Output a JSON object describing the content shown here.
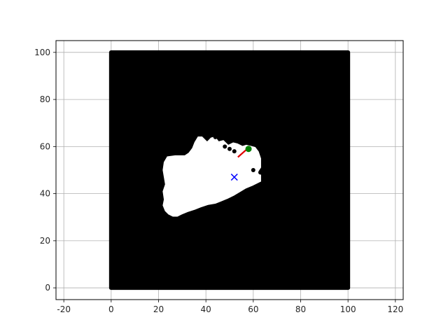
{
  "chart_data": {
    "type": "scatter",
    "title": "",
    "xlabel": "",
    "ylabel": "",
    "xlim": [
      -23.3,
      123.3
    ],
    "ylim": [
      -5,
      105
    ],
    "xticks": [
      -20,
      0,
      20,
      40,
      60,
      80,
      100,
      120
    ],
    "yticks": [
      0,
      20,
      40,
      60,
      80,
      100
    ],
    "grid": true,
    "legend": "none",
    "series": [
      {
        "marker": "dot",
        "color": "#000000",
        "description_region": "occupied grid cells, square 0..100 x 0..100",
        "grid_extent": {
          "x": [
            0,
            100
          ],
          "y": [
            0,
            100
          ]
        },
        "free_space_polygon": [
          [
            35,
            62
          ],
          [
            36.5,
            64.5
          ],
          [
            38.5,
            64.5
          ],
          [
            40.5,
            62.5
          ],
          [
            42,
            64
          ],
          [
            44,
            64.5
          ],
          [
            45.5,
            62.5
          ],
          [
            47.5,
            63
          ],
          [
            49.5,
            61
          ],
          [
            51.5,
            62
          ],
          [
            53.5,
            61.5
          ],
          [
            55.5,
            60.5
          ],
          [
            57,
            61
          ],
          [
            59,
            60.5
          ],
          [
            61,
            60
          ],
          [
            62.5,
            58
          ],
          [
            63.5,
            55
          ],
          [
            63.5,
            51
          ],
          [
            62.5,
            49.5
          ],
          [
            63.5,
            48
          ],
          [
            63.5,
            45
          ],
          [
            61.5,
            44
          ],
          [
            59.5,
            43
          ],
          [
            57,
            42
          ],
          [
            54.5,
            40.5
          ],
          [
            52,
            39
          ],
          [
            49,
            37.5
          ],
          [
            46.5,
            36.5
          ],
          [
            44,
            35.5
          ],
          [
            41,
            35
          ],
          [
            38,
            34
          ],
          [
            35.5,
            33
          ],
          [
            32.5,
            32
          ],
          [
            30,
            31
          ],
          [
            28,
            30
          ],
          [
            26,
            30
          ],
          [
            24,
            31
          ],
          [
            22.5,
            32.5
          ],
          [
            21.5,
            35
          ],
          [
            22,
            37.5
          ],
          [
            21.5,
            41
          ],
          [
            22.5,
            44
          ],
          [
            22,
            47
          ],
          [
            21.5,
            50
          ],
          [
            22,
            53.5
          ],
          [
            23.5,
            56
          ],
          [
            27,
            56.5
          ],
          [
            31,
            56.5
          ],
          [
            32.5,
            57.5
          ],
          [
            34,
            59.5
          ]
        ],
        "isolated_points": [
          {
            "x": 44,
            "y": 64
          },
          {
            "x": 48,
            "y": 60
          },
          {
            "x": 50,
            "y": 59
          },
          {
            "x": 60,
            "y": 50
          },
          {
            "x": 63,
            "y": 49
          },
          {
            "x": 52,
            "y": 58
          }
        ]
      },
      {
        "marker": "x",
        "color": "#0000ff",
        "points": [
          {
            "x": 52,
            "y": 47
          }
        ]
      },
      {
        "marker": "circle",
        "color": "#008000",
        "points": [
          {
            "x": 58,
            "y": 59
          }
        ]
      },
      {
        "marker": "line",
        "color": "#e00000",
        "points": [
          {
            "x": 53.5,
            "y": 55.5
          },
          {
            "x": 58,
            "y": 59.5
          }
        ]
      }
    ]
  }
}
